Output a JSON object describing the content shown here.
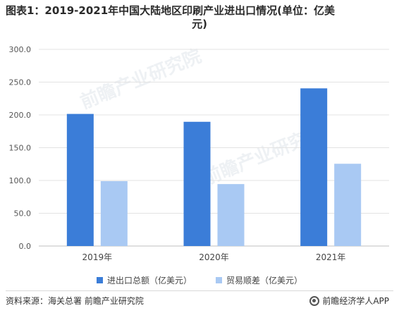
{
  "title_line1": "图表1：2019-2021年中国大陆地区印刷产业进出口情况(单位：亿美",
  "title_line2": "元)",
  "chart_data": {
    "type": "bar",
    "categories": [
      "2019年",
      "2020年",
      "2021年"
    ],
    "series": [
      {
        "name": "进出口总额（亿美元）",
        "values": [
          201.5,
          189.5,
          240.5
        ],
        "color": "#3b7dd8"
      },
      {
        "name": "贸易顺差（亿美元）",
        "values": [
          99.0,
          94.5,
          125.5
        ],
        "color": "#a9c9f3"
      }
    ],
    "ylim": [
      0,
      300
    ],
    "yticks": [
      "0.0",
      "50.0",
      "100.0",
      "150.0",
      "200.0",
      "250.0",
      "300.0"
    ],
    "grid": true,
    "legend_position": "bottom"
  },
  "source": "资料来源：海关总署 前瞻产业研究院",
  "brand": "前瞻经济学人APP",
  "watermark": "前瞻产业研究院",
  "colors": {
    "gridline": "#e3e3e3",
    "axis": "#bfbfbf"
  }
}
